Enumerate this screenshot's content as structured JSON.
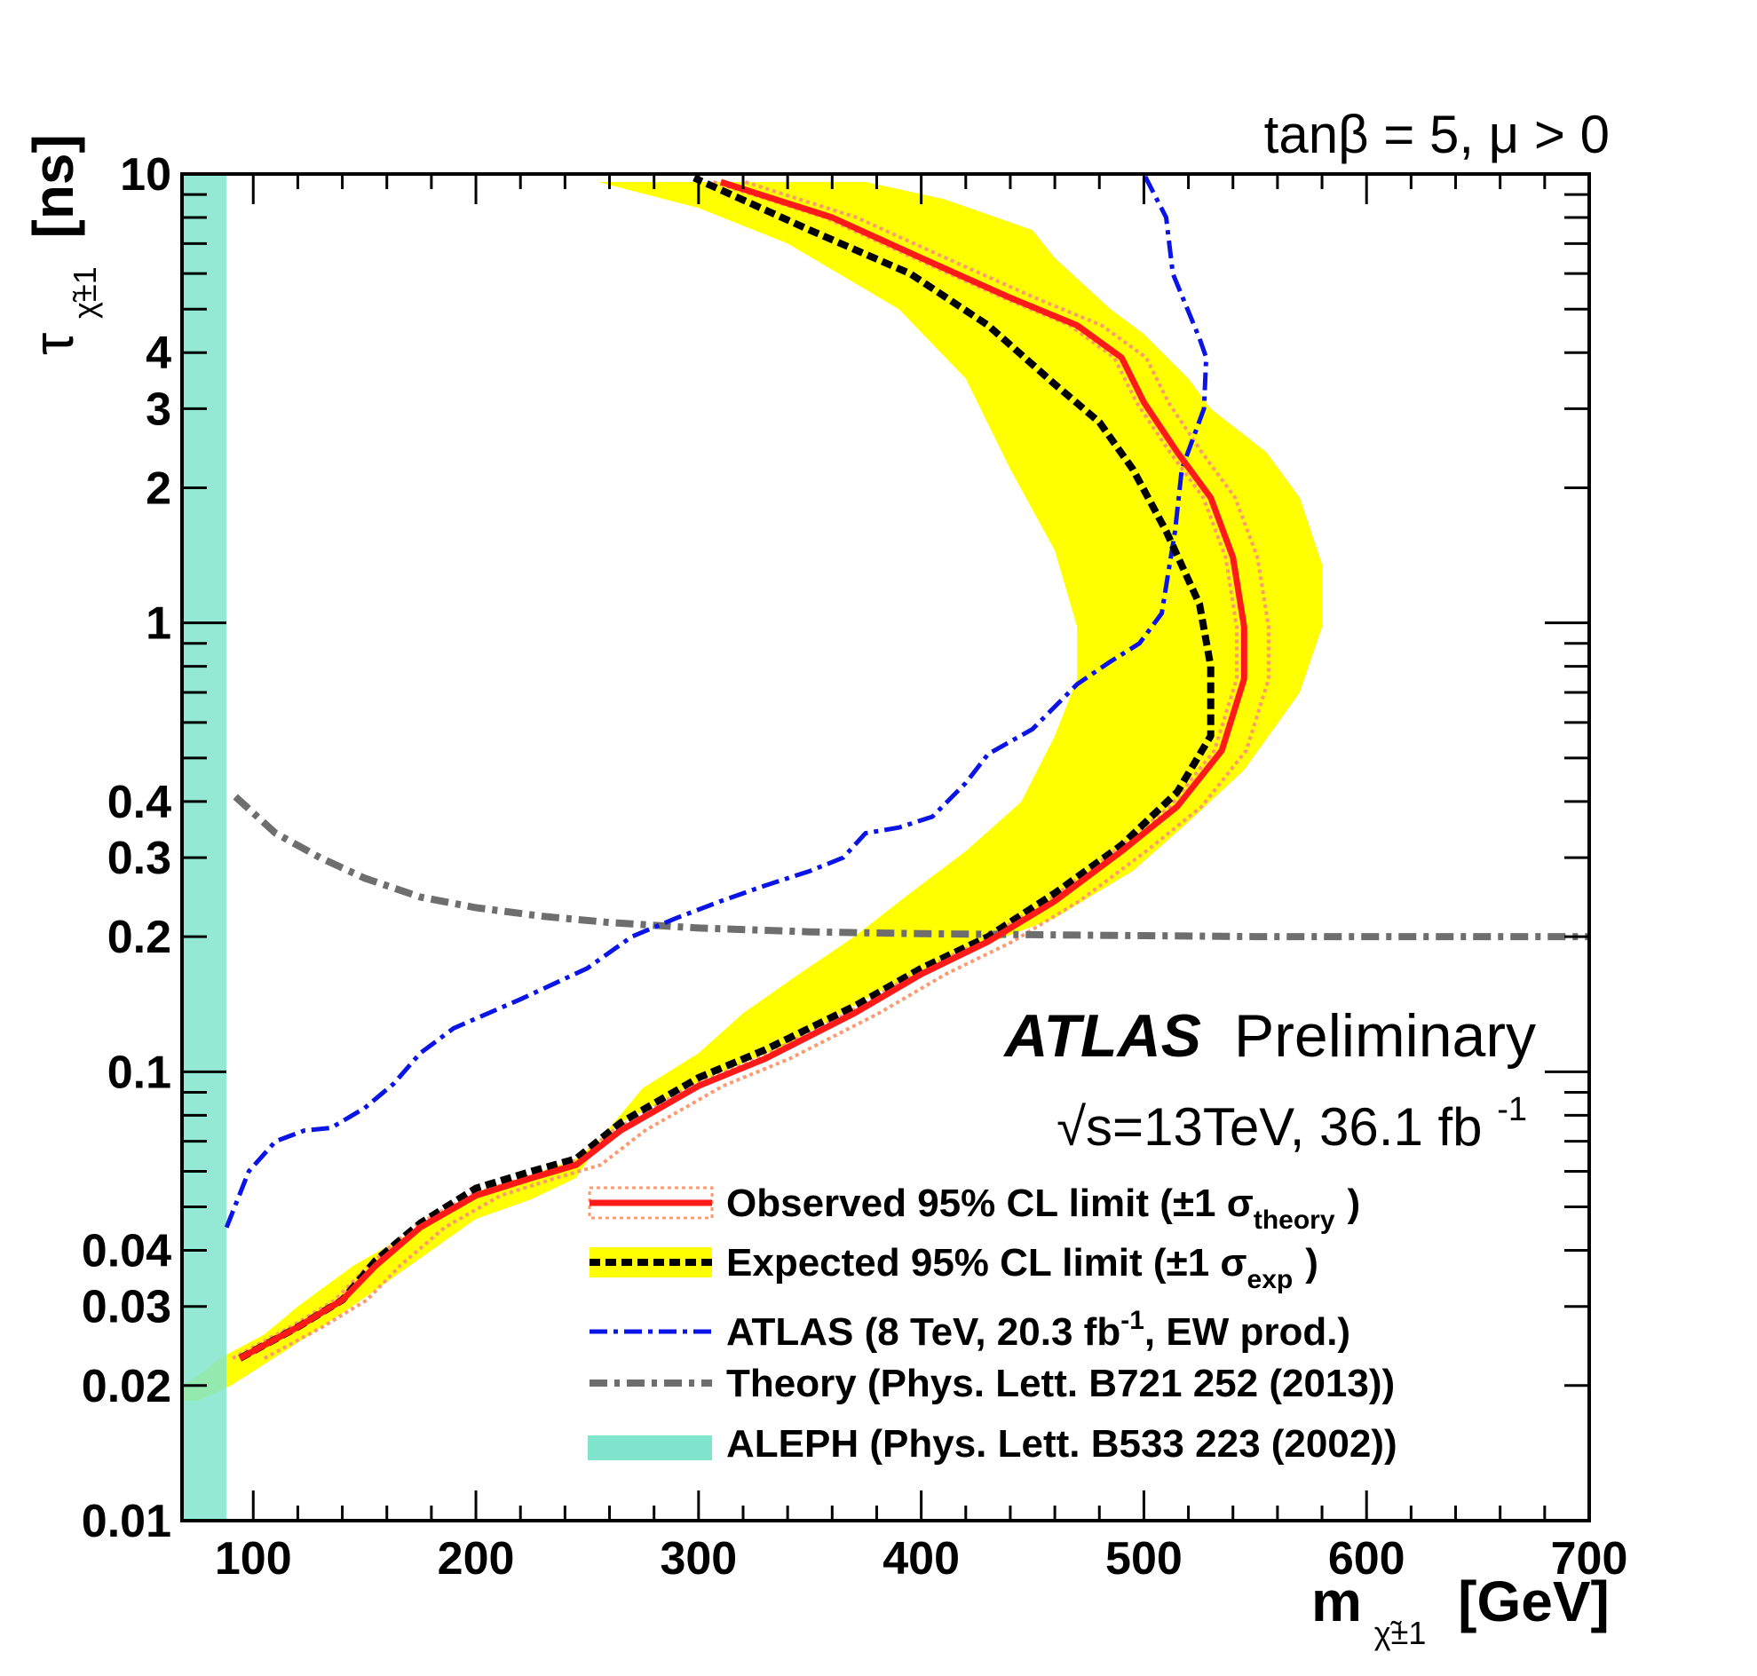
{
  "chart_data": {
    "type": "line",
    "annotation": "tanβ = 5, μ > 0",
    "atlas_label": "ATLAS",
    "atlas_sublabel": "Preliminary",
    "energy_label": "√s=13TeV, 36.1 fb",
    "energy_sup": "-1",
    "xlabel": "m",
    "xlabel_sub": "χ̃±1",
    "xlabel_unit": "[GeV]",
    "ylabel": "τ",
    "ylabel_sub": "χ̃±1",
    "ylabel_unit": "[ns]",
    "xlim": [
      68,
      700
    ],
    "ylim": [
      0.01,
      10
    ],
    "yscale": "log",
    "x_ticks": [
      "100",
      "200",
      "300",
      "400",
      "500",
      "600",
      "700"
    ],
    "y_ticks": [
      "0.01",
      "0.02",
      "0.03",
      "0.04",
      "0.1",
      "0.2",
      "0.3",
      "0.4",
      "1",
      "2",
      "3",
      "4",
      "10"
    ],
    "legend": {
      "observed": {
        "text": "Observed 95% CL limit (±1 σ",
        "sub": "theory",
        "close": ")"
      },
      "expected": {
        "text": "Expected 95% CL limit (±1 σ",
        "sub": "exp",
        "close": ")"
      },
      "atlas8": {
        "text": "ATLAS (8 TeV, 20.3 fb",
        "sup": "-1",
        "close": ", EW prod.)"
      },
      "theory": {
        "text": "Theory (Phys. Lett. B721 252 (2013))"
      },
      "aleph": {
        "text": "ALEPH (Phys. Lett. B533 223 (2002))"
      }
    },
    "colors": {
      "observed": "#ff1a1a",
      "observed_band": "#ff9970",
      "expected": "#000000",
      "expected_band": "#ffff00",
      "atlas8": "#0a14e6",
      "theory": "#6e6e6e",
      "aleph": "#80e5cc"
    },
    "aleph_region": {
      "x_max": 88
    },
    "series": [
      {
        "name": "Observed 95% CL limit",
        "x": [
          94,
          120,
          140,
          155,
          175,
          200,
          225,
          245,
          265,
          300,
          330,
          370,
          400,
          430,
          460,
          490,
          515,
          535,
          545,
          545,
          540,
          530,
          515,
          500,
          490,
          470,
          440,
          400,
          360,
          310
        ],
        "y": [
          0.023,
          0.027,
          0.031,
          0.037,
          0.045,
          0.053,
          0.058,
          0.062,
          0.074,
          0.093,
          0.107,
          0.135,
          0.165,
          0.195,
          0.24,
          0.31,
          0.39,
          0.52,
          0.75,
          0.98,
          1.4,
          1.9,
          2.4,
          3.1,
          3.9,
          4.6,
          5.3,
          6.5,
          8.0,
          9.6
        ]
      },
      {
        "name": "Expected 95% CL limit",
        "x": [
          94,
          120,
          140,
          155,
          175,
          200,
          225,
          245,
          265,
          300,
          330,
          370,
          400,
          430,
          460,
          490,
          515,
          530,
          530,
          525,
          510,
          495,
          480,
          460,
          430,
          395,
          350,
          298
        ],
        "y": [
          0.023,
          0.027,
          0.031,
          0.038,
          0.046,
          0.055,
          0.06,
          0.064,
          0.077,
          0.097,
          0.112,
          0.14,
          0.17,
          0.2,
          0.25,
          0.32,
          0.42,
          0.56,
          0.8,
          1.1,
          1.6,
          2.2,
          2.8,
          3.4,
          4.6,
          6.0,
          7.5,
          9.8
        ]
      },
      {
        "name": "ATLAS (8 TeV, 20.3 fb-1, EW prod.)",
        "x": [
          88,
          98,
          110,
          123,
          135,
          150,
          163,
          175,
          190,
          220,
          250,
          270,
          290,
          310,
          330,
          350,
          365,
          375,
          390,
          405,
          420,
          430,
          450,
          470,
          485,
          498,
          508,
          514,
          517,
          527,
          528,
          525,
          513,
          510,
          500
        ],
        "y": [
          0.045,
          0.06,
          0.07,
          0.074,
          0.075,
          0.083,
          0.094,
          0.11,
          0.125,
          0.145,
          0.17,
          0.2,
          0.22,
          0.24,
          0.26,
          0.28,
          0.3,
          0.34,
          0.35,
          0.37,
          0.44,
          0.51,
          0.58,
          0.73,
          0.82,
          0.9,
          1.05,
          1.6,
          2.2,
          3.0,
          3.9,
          4.3,
          6.0,
          8.0,
          10.0
        ]
      },
      {
        "name": "Theory (Phys. Lett. B721 252 (2013))",
        "x": [
          92,
          110,
          130,
          150,
          175,
          200,
          230,
          260,
          300,
          350,
          400,
          450,
          500,
          550,
          600,
          650,
          700
        ],
        "y": [
          0.41,
          0.34,
          0.3,
          0.27,
          0.245,
          0.232,
          0.222,
          0.215,
          0.209,
          0.205,
          0.203,
          0.202,
          0.201,
          0.2,
          0.2,
          0.2,
          0.2
        ]
      }
    ],
    "bands": [
      {
        "name": "Observed theory band",
        "x_low": [
          94,
          120,
          140,
          155,
          175,
          200,
          225,
          245,
          265,
          300,
          330,
          370,
          400,
          430,
          460,
          490,
          515,
          535,
          545,
          545,
          540,
          530,
          515,
          500,
          490,
          470,
          440,
          400,
          360,
          310
        ],
        "offset": 11
      },
      {
        "name": "Expected ±1σ band",
        "upper_x": [
          68,
          75,
          85,
          105,
          120,
          145,
          175,
          200,
          225,
          245,
          265,
          300,
          340,
          380,
          420,
          460,
          495,
          520,
          545,
          570,
          580,
          580,
          570,
          555,
          530,
          520,
          500,
          485,
          460,
          450,
          410,
          375,
          325,
          300
        ],
        "upper_y": [
          0.02,
          0.021,
          0.023,
          0.026,
          0.03,
          0.037,
          0.045,
          0.054,
          0.059,
          0.064,
          0.077,
          0.095,
          0.115,
          0.15,
          0.185,
          0.22,
          0.28,
          0.36,
          0.47,
          0.7,
          0.98,
          1.35,
          1.9,
          2.4,
          3.0,
          3.5,
          4.4,
          5.0,
          6.5,
          7.5,
          8.8,
          9.6,
          9.6,
          9.6
        ],
        "lower_x": [
          255,
          300,
          340,
          390,
          420,
          440,
          460,
          470,
          470,
          460,
          445,
          420,
          395,
          370,
          345,
          320,
          300,
          275,
          260,
          245,
          225,
          200,
          180,
          160,
          140,
          115,
          90,
          75,
          68
        ],
        "lower_y": [
          9.6,
          8.4,
          7.0,
          5.0,
          3.5,
          2.2,
          1.45,
          0.98,
          0.75,
          0.56,
          0.4,
          0.31,
          0.25,
          0.2,
          0.165,
          0.135,
          0.11,
          0.092,
          0.075,
          0.058,
          0.052,
          0.047,
          0.04,
          0.034,
          0.029,
          0.024,
          0.02,
          0.0185,
          0.0185
        ]
      }
    ]
  }
}
